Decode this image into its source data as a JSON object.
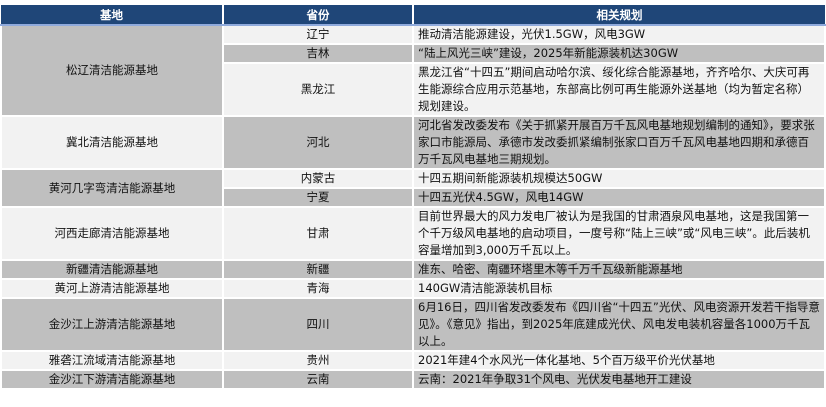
{
  "headers": [
    "基地",
    "省份",
    "相关规划"
  ],
  "rows": [
    {
      "base": "松辽清洁能源基地",
      "provinces": [
        {
          "name": "辽宁",
          "plan": "推动清洁能源建设，光伏1.5GW，风电3GW"
        },
        {
          "name": "吉林",
          "plan": "“陆上风光三峡”建设，2025年新能源装机达30GW"
        },
        {
          "name": "黑龙江",
          "plan": "黑龙江省“十四五”期间启动哈尔滨、绥化综合能源基地，齐齐哈尔、大庆可再生能源综合应用示范基地，东部高比例可再生能源外送基地（均为暂定名称）规划建设。"
        }
      ]
    },
    {
      "base": "冀北清洁能源基地",
      "provinces": [
        {
          "name": "河北",
          "plan": "河北省发改委发布《关于抓紧开展百万千瓦风电基地规划编制的通知》，要求张家口市能源局、承德市发改委抓紧编制张家口百万千瓦风电基地四期和承德百万千瓦风电基地三期规划。"
        }
      ]
    },
    {
      "base": "黄河几字弯清洁能源基地",
      "provinces": [
        {
          "name": "内蒙古",
          "plan": "十四五期间新能源装机规模达50GW"
        },
        {
          "name": "宁夏",
          "plan": "十四五光伏4.5GW，风电14GW"
        }
      ]
    },
    {
      "base": "河西走廊清洁能源基地",
      "provinces": [
        {
          "name": "甘肃",
          "plan": "目前世界最大的风力发电厂被认为是我国的甘肃酒泉风电基地，这是我国第一个千万级风电基地的启动项目，一度号称“陆上三峡”或“风电三峡”。此后装机容量增加到3,000万千瓦以上。"
        }
      ]
    },
    {
      "base": "新疆清洁能源基地",
      "provinces": [
        {
          "name": "新疆",
          "plan": "准东、哈密、南疆环塔里木等千万千瓦级新能源基地"
        }
      ]
    },
    {
      "base": "黄河上游清洁能源基地",
      "provinces": [
        {
          "name": "青海",
          "plan": "140GW清洁能源装机目标"
        }
      ]
    },
    {
      "base": "金沙江上游清洁能源基地",
      "provinces": [
        {
          "name": "四川",
          "plan": "6月16日，四川省发改委发布《四川省“十四五”光伏、风电资源开发若干指导意见》。《意见》指出，到2025年底建成光伏、风电发电装机容量各1000万千瓦以上。"
        }
      ]
    },
    {
      "base": "雅砻江流域清洁能源基地",
      "provinces": [
        {
          "name": "贵州",
          "plan": "2021年建4个水风光一体化基地、5个百万级平价光伏基地"
        }
      ]
    },
    {
      "base": "金沙江下游清洁能源基地",
      "provinces": [
        {
          "name": "云南",
          "plan": "云南：2021年争取31个风电、光伏发电基地开工建设"
        }
      ]
    }
  ],
  "colors": {
    "header": "#1f4678",
    "gray": "#bfbfbf",
    "light": "#f2f2f2"
  }
}
